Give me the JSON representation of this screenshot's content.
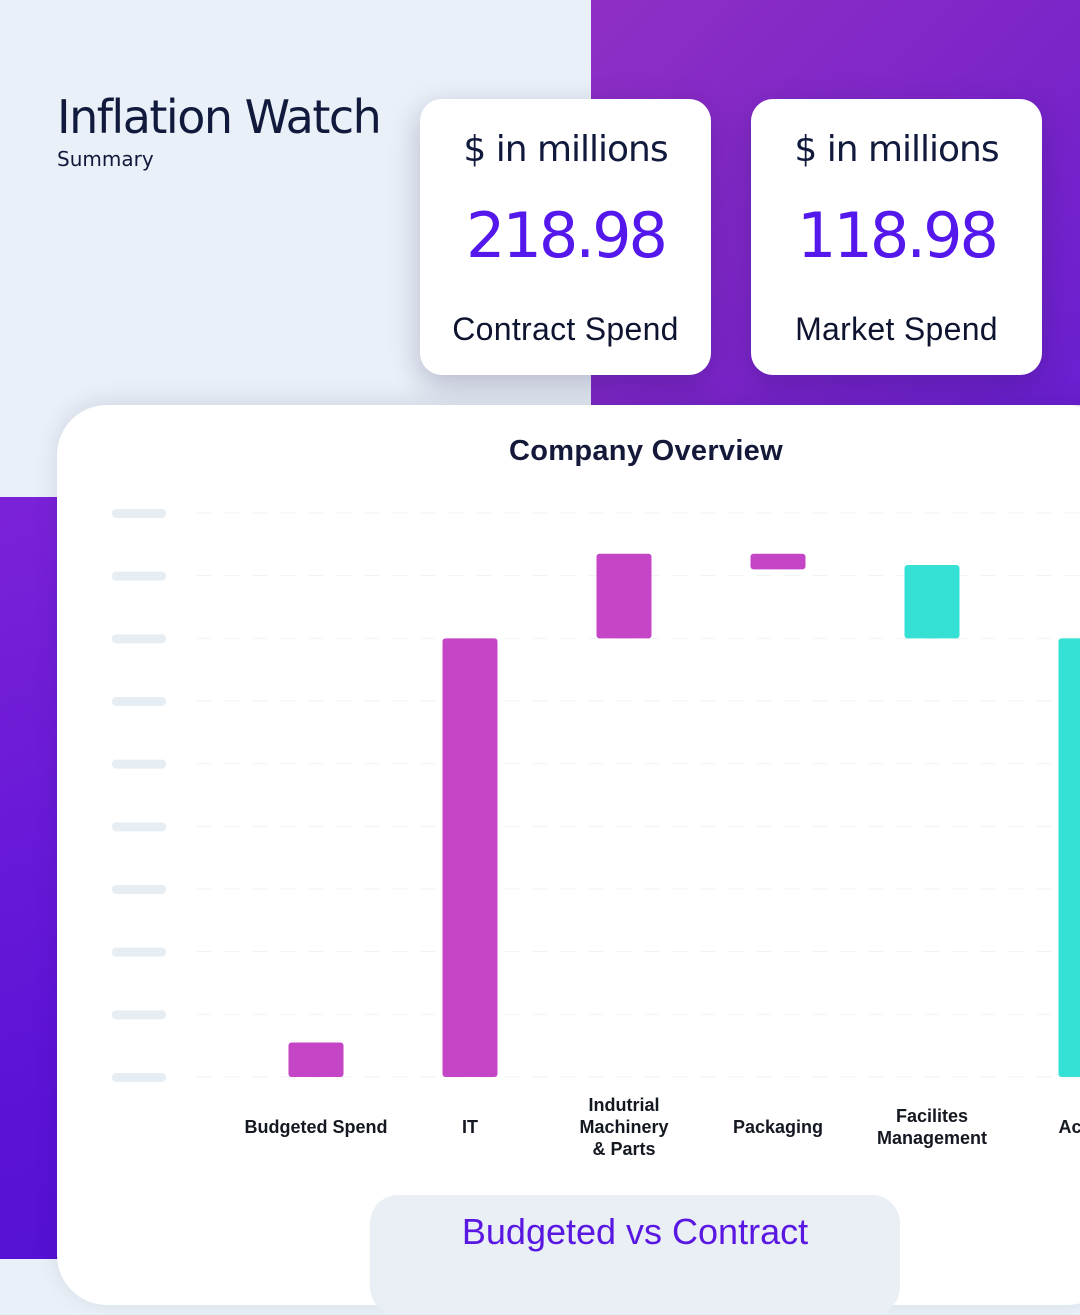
{
  "header": {
    "title": "Inflation Watch",
    "subtitle": "Summary"
  },
  "kpis": [
    {
      "unit": "$ in millions",
      "value": "218.98",
      "label": "Contract Spend"
    },
    {
      "unit": "$ in millions",
      "value": "118.98",
      "label": "Market Spend"
    }
  ],
  "colors": {
    "accent": "#5417ec",
    "bar_increase": "#c445c6",
    "bar_decrease": "#35e0d4",
    "bar_total": "#35e0d4"
  },
  "chart_data": {
    "type": "bar",
    "subtype": "waterfall",
    "title": "Company Overview",
    "categories": [
      "Budgeted Spend",
      "IT",
      "Indutrial\nMachinery\n& Parts",
      "Packaging",
      "Facilites\nManagement",
      "Actual"
    ],
    "bars": [
      {
        "base": 0,
        "top": 0.55,
        "kind": "increase"
      },
      {
        "base": 0,
        "top": 7.0,
        "kind": "increase"
      },
      {
        "base": 7.0,
        "top": 8.35,
        "kind": "increase"
      },
      {
        "base": 8.1,
        "top": 8.35,
        "kind": "increase"
      },
      {
        "base": 7.0,
        "top": 8.17,
        "kind": "decrease"
      },
      {
        "base": 0,
        "top": 7.0,
        "kind": "total"
      }
    ],
    "ylim": [
      0,
      9
    ],
    "ytick_count": 10,
    "grid": true,
    "legend": [
      "Budgeted vs Contract"
    ],
    "legend_placement": "bottom"
  }
}
